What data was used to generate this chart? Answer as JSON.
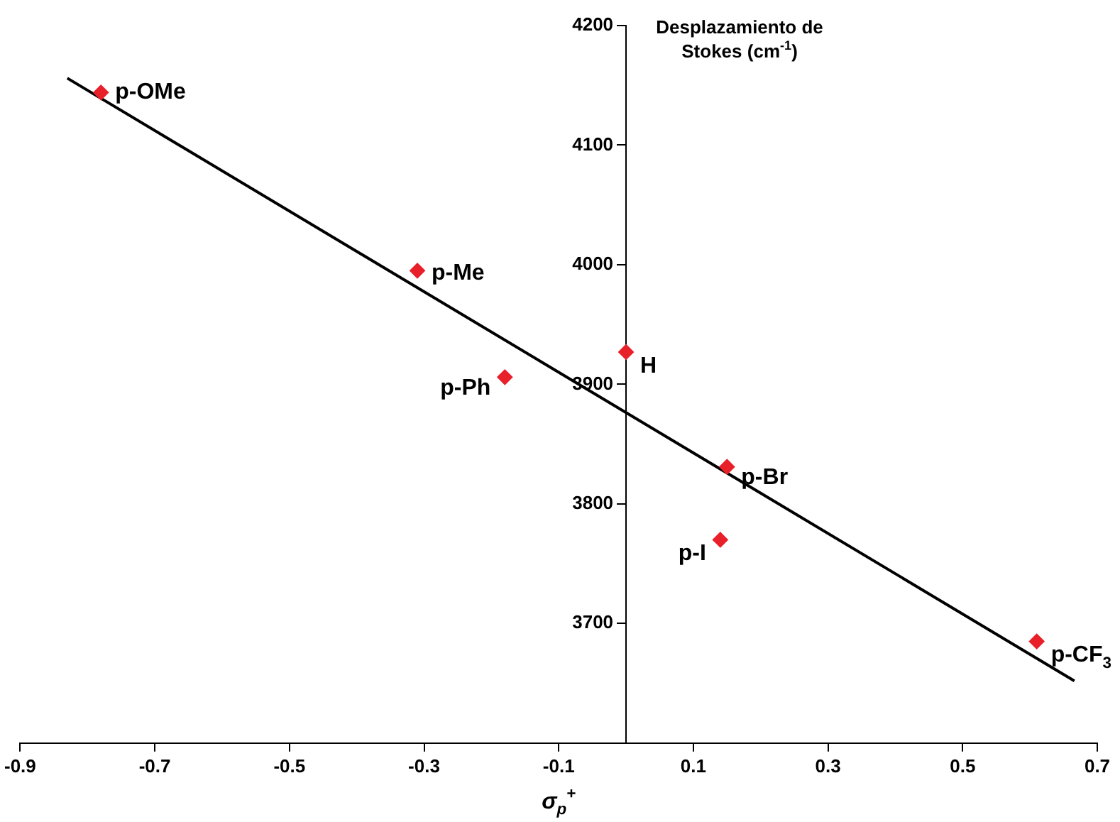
{
  "chart_data": {
    "type": "scatter",
    "xlabel": "σ$_{p}$$^{+}$",
    "ylabel": "Desplazamiento de Stokes (cm$^{-1}$)",
    "xlim": [
      -0.9,
      0.7
    ],
    "xticks": [
      -0.9,
      -0.7,
      -0.5,
      -0.3,
      -0.1,
      0.1,
      0.3,
      0.5,
      0.7
    ],
    "ylim": [
      3600,
      4200
    ],
    "yticks": [
      {
        "value": 3600,
        "label": null
      },
      3700,
      3800,
      3900,
      4000,
      4100,
      4200
    ],
    "grid": false,
    "legend": false,
    "marker": "diamond",
    "series": [
      {
        "color": "#e8202a",
        "x": [
          -0.78,
          -0.31,
          -0.18,
          0.0,
          0.15,
          0.14,
          0.61
        ],
        "values": [
          4144,
          3995,
          3906,
          3927,
          3831,
          3770,
          3685
        ]
      },
      {
        "type": "line",
        "color": "#000000",
        "marker": "none",
        "x": [
          -0.83,
          0.666
        ],
        "values": [
          4156,
          3652
        ]
      }
    ],
    "annotations": [
      {
        "text": "p-OMe",
        "x": -0.78,
        "y": 4144
      },
      {
        "text": "p-Me",
        "x": -0.31,
        "y": 3995
      },
      {
        "text": "p-Ph",
        "x": -0.18,
        "y": 3906
      },
      {
        "text": "H",
        "x": 0.0,
        "y": 3927
      },
      {
        "text": "p-Br",
        "x": 0.15,
        "y": 3831
      },
      {
        "text": "p-I",
        "x": 0.14,
        "y": 3770
      },
      {
        "text": "p-CF$_{3}$",
        "x": 0.61,
        "y": 3685
      }
    ]
  }
}
